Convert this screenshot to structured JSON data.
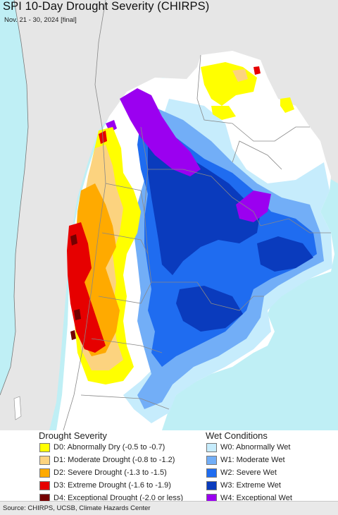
{
  "header": {
    "title": "SPI 10-Day Drought Severity (CHIRPS)",
    "subtitle": "Nov. 21 - 30, 2024 [final]"
  },
  "legend": {
    "drought_heading": "Drought Severity",
    "wet_heading": "Wet Conditions",
    "drought": [
      {
        "label": "D0: Abnormally Dry (-0.5 to -0.7)",
        "color": "#ffff00"
      },
      {
        "label": "D1: Moderate Drought (-0.8 to -1.2)",
        "color": "#fcd37f"
      },
      {
        "label": "D2: Severe Drought (-1.3 to -1.5)",
        "color": "#ffaa00"
      },
      {
        "label": "D3: Extreme Drought (-1.6 to -1.9)",
        "color": "#e60000"
      },
      {
        "label": "D4: Exceptional Drought (-2.0 or less)",
        "color": "#730000"
      }
    ],
    "wet": [
      {
        "label": "W0: Abnormally Wet",
        "color": "#c6ecfc"
      },
      {
        "label": "W1: Moderate Wet",
        "color": "#72aef7"
      },
      {
        "label": "W2: Severe Wet",
        "color": "#1f6cf0"
      },
      {
        "label": "W3: Extreme Wet",
        "color": "#0a3bbd"
      },
      {
        "label": "W4: Exceptional Wet",
        "color": "#9b00f0"
      }
    ]
  },
  "map": {
    "ocean_color": "#bfeff5",
    "neutral_land_color": "#ffffff",
    "outside_land_color": "#e6e6e6",
    "border_color": "#888888"
  },
  "footer": {
    "source": "Source: CHIRPS, UCSB, Climate Hazards Center"
  }
}
